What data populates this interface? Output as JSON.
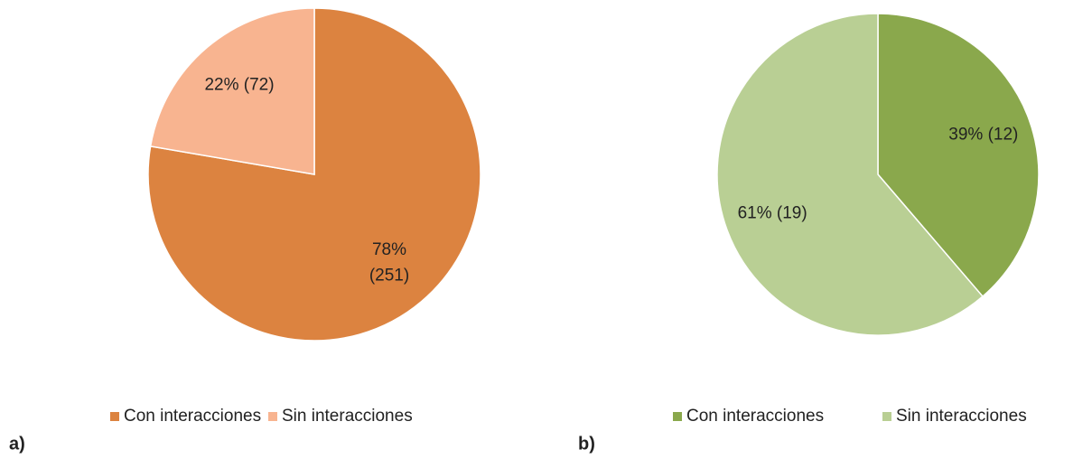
{
  "chart_data": [
    {
      "type": "pie",
      "panel_label": "a)",
      "categories": [
        "Con interacciones",
        "Sin interacciones"
      ],
      "values": [
        251,
        72
      ],
      "value_labels": [
        "78%\n(251)",
        "22%  (72)"
      ],
      "colors": [
        "#dc8340",
        "#f8b490"
      ],
      "legend": "bottom"
    },
    {
      "type": "pie",
      "panel_label": "b)",
      "categories": [
        "Con interacciones",
        "Sin interacciones"
      ],
      "values": [
        12,
        19
      ],
      "value_labels": [
        "39% (12)",
        "61% (19)"
      ],
      "colors": [
        "#8aa84c",
        "#b9cf94"
      ],
      "legend": "bottom"
    }
  ]
}
